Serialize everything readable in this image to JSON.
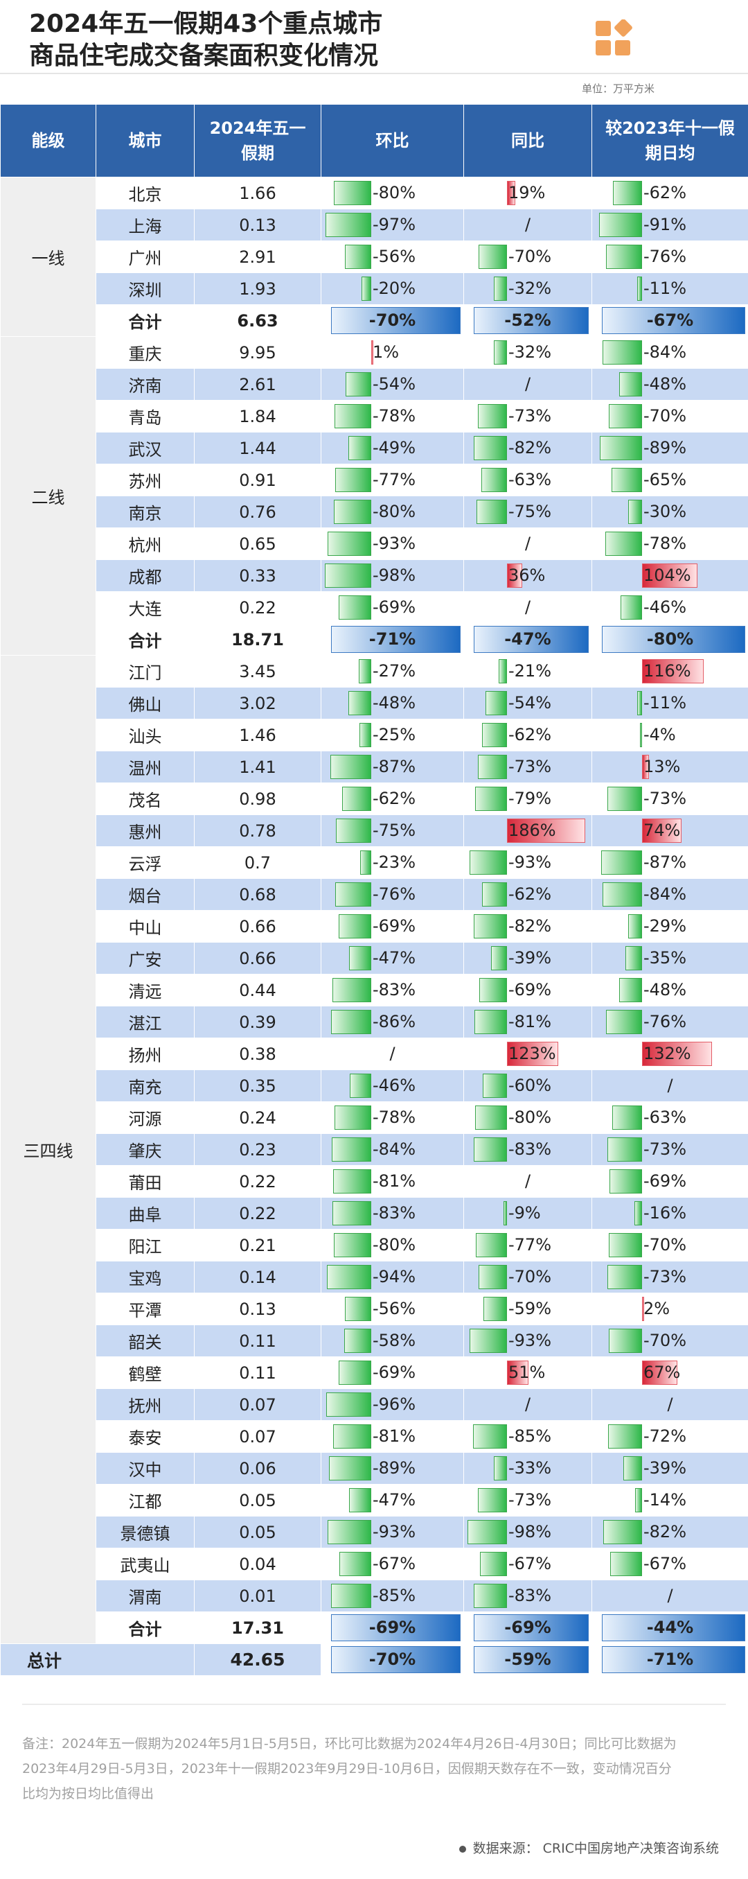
{
  "title_line1": "2024年五一假期43个重点城市",
  "title_line2": "商品住宅成交备案面积变化情况",
  "logo_icon": "grid-diamond-logo-icon",
  "unit": "单位：万平方米",
  "columns": {
    "tier": "能级",
    "city": "城市",
    "value": "2024年五一假期",
    "mom": "环比",
    "yoy": "同比",
    "vs_oct": "较2023年十一假期日均"
  },
  "colors": {
    "header_bg": "#2f63a8",
    "row_blue": "#c8d9f3",
    "negative": "#2fb84a",
    "positive": "#d8283a",
    "sum_bar": "#1d6ac2"
  },
  "tiers": [
    {
      "name": "一线",
      "rows": [
        {
          "city": "北京",
          "value": "1.66",
          "mom": -80,
          "yoy": 19,
          "vs": -62
        },
        {
          "city": "上海",
          "value": "0.13",
          "mom": -97,
          "yoy": null,
          "vs": -91
        },
        {
          "city": "广州",
          "value": "2.91",
          "mom": -56,
          "yoy": -70,
          "vs": -76
        },
        {
          "city": "深圳",
          "value": "1.93",
          "mom": -20,
          "yoy": -32,
          "vs": -11
        }
      ],
      "sum": {
        "label": "合计",
        "value": "6.63",
        "mom": -70,
        "yoy": -52,
        "vs": -67
      }
    },
    {
      "name": "二线",
      "rows": [
        {
          "city": "重庆",
          "value": "9.95",
          "mom": 1,
          "yoy": -32,
          "vs": -84
        },
        {
          "city": "济南",
          "value": "2.61",
          "mom": -54,
          "yoy": null,
          "vs": -48
        },
        {
          "city": "青岛",
          "value": "1.84",
          "mom": -78,
          "yoy": -73,
          "vs": -70
        },
        {
          "city": "武汉",
          "value": "1.44",
          "mom": -49,
          "yoy": -82,
          "vs": -89
        },
        {
          "city": "苏州",
          "value": "0.91",
          "mom": -77,
          "yoy": -63,
          "vs": -65
        },
        {
          "city": "南京",
          "value": "0.76",
          "mom": -80,
          "yoy": -75,
          "vs": -30
        },
        {
          "city": "杭州",
          "value": "0.65",
          "mom": -93,
          "yoy": null,
          "vs": -78
        },
        {
          "city": "成都",
          "value": "0.33",
          "mom": -98,
          "yoy": 36,
          "vs": 104
        },
        {
          "city": "大连",
          "value": "0.22",
          "mom": -69,
          "yoy": null,
          "vs": -46
        }
      ],
      "sum": {
        "label": "合计",
        "value": "18.71",
        "mom": -71,
        "yoy": -47,
        "vs": -80
      }
    },
    {
      "name": "三四线",
      "rows": [
        {
          "city": "江门",
          "value": "3.45",
          "mom": -27,
          "yoy": -21,
          "vs": 116
        },
        {
          "city": "佛山",
          "value": "3.02",
          "mom": -48,
          "yoy": -54,
          "vs": -11
        },
        {
          "city": "汕头",
          "value": "1.46",
          "mom": -25,
          "yoy": -62,
          "vs": -4
        },
        {
          "city": "温州",
          "value": "1.41",
          "mom": -87,
          "yoy": -73,
          "vs": 13
        },
        {
          "city": "茂名",
          "value": "0.98",
          "mom": -62,
          "yoy": -79,
          "vs": -73
        },
        {
          "city": "惠州",
          "value": "0.78",
          "mom": -75,
          "yoy": 186,
          "vs": 74
        },
        {
          "city": "云浮",
          "value": "0.7",
          "mom": -23,
          "yoy": -93,
          "vs": -87
        },
        {
          "city": "烟台",
          "value": "0.68",
          "mom": -76,
          "yoy": -62,
          "vs": -84
        },
        {
          "city": "中山",
          "value": "0.66",
          "mom": -69,
          "yoy": -82,
          "vs": -29
        },
        {
          "city": "广安",
          "value": "0.66",
          "mom": -47,
          "yoy": -39,
          "vs": -35
        },
        {
          "city": "清远",
          "value": "0.44",
          "mom": -83,
          "yoy": -69,
          "vs": -48
        },
        {
          "city": "湛江",
          "value": "0.39",
          "mom": -86,
          "yoy": -81,
          "vs": -76
        },
        {
          "city": "扬州",
          "value": "0.38",
          "mom": null,
          "yoy": 123,
          "vs": 132
        },
        {
          "city": "南充",
          "value": "0.35",
          "mom": -46,
          "yoy": -60,
          "vs": null
        },
        {
          "city": "河源",
          "value": "0.24",
          "mom": -78,
          "yoy": -80,
          "vs": -63
        },
        {
          "city": "肇庆",
          "value": "0.23",
          "mom": -84,
          "yoy": -83,
          "vs": -73
        },
        {
          "city": "莆田",
          "value": "0.22",
          "mom": -81,
          "yoy": null,
          "vs": -69
        },
        {
          "city": "曲阜",
          "value": "0.22",
          "mom": -83,
          "yoy": -9,
          "vs": -16
        },
        {
          "city": "阳江",
          "value": "0.21",
          "mom": -80,
          "yoy": -77,
          "vs": -70
        },
        {
          "city": "宝鸡",
          "value": "0.14",
          "mom": -94,
          "yoy": -70,
          "vs": -73
        },
        {
          "city": "平潭",
          "value": "0.13",
          "mom": -56,
          "yoy": -59,
          "vs": 2
        },
        {
          "city": "韶关",
          "value": "0.11",
          "mom": -58,
          "yoy": -93,
          "vs": -70
        },
        {
          "city": "鹤壁",
          "value": "0.11",
          "mom": -69,
          "yoy": 51,
          "vs": 67
        },
        {
          "city": "抚州",
          "value": "0.07",
          "mom": -96,
          "yoy": null,
          "vs": null
        },
        {
          "city": "泰安",
          "value": "0.07",
          "mom": -81,
          "yoy": -85,
          "vs": -72
        },
        {
          "city": "汉中",
          "value": "0.06",
          "mom": -89,
          "yoy": -33,
          "vs": -39
        },
        {
          "city": "江都",
          "value": "0.05",
          "mom": -47,
          "yoy": -73,
          "vs": -14
        },
        {
          "city": "景德镇",
          "value": "0.05",
          "mom": -93,
          "yoy": -98,
          "vs": -82
        },
        {
          "city": "武夷山",
          "value": "0.04",
          "mom": -67,
          "yoy": -67,
          "vs": -67
        },
        {
          "city": "渭南",
          "value": "0.01",
          "mom": -85,
          "yoy": -83,
          "vs": null
        }
      ],
      "sum": {
        "label": "合计",
        "value": "17.31",
        "mom": -69,
        "yoy": -69,
        "vs": -44
      }
    }
  ],
  "total": {
    "label": "总计",
    "value": "42.65",
    "mom": -70,
    "yoy": -59,
    "vs": -71
  },
  "note": "备注：2024年五一假期为2024年5月1日-5月5日，环比可比数据为2024年4月26日-4月30日；同比可比数据为2023年4月29日-5月3日，2023年十一假期2023年9月29日-10月6日，因假期天数存在不一致，变动情况百分比均为按日均比值得出",
  "source": "数据来源：  CRIC中国房地产决策咨询系统"
}
